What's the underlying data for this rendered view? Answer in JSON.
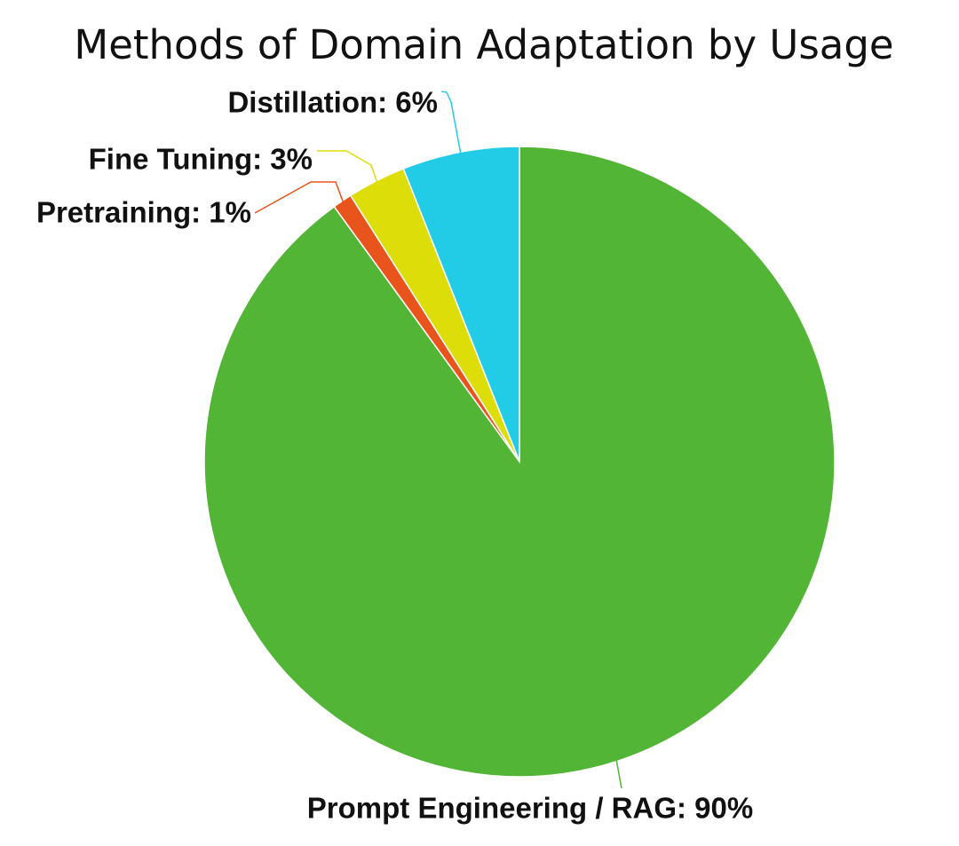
{
  "chart_data": {
    "type": "pie",
    "title": "Methods of Domain Adaptation by Usage",
    "labels": [
      "Prompt Engineering / RAG: 90%",
      "Pretraining: 1%",
      "Fine Tuning: 3%",
      "Distillation: 6%"
    ],
    "values": [
      90,
      1,
      3,
      6
    ],
    "colors": [
      "#52b535",
      "#e8541c",
      "#dddd0a",
      "#22cce6"
    ]
  }
}
